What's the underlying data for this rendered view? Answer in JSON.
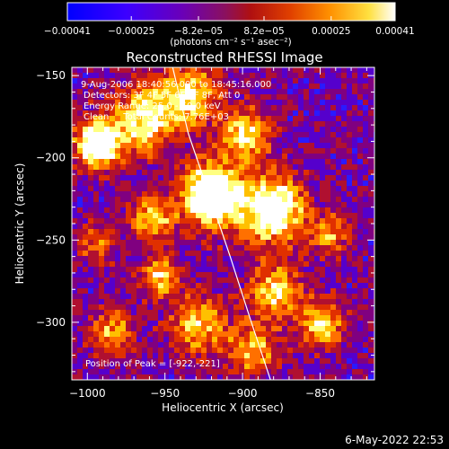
{
  "colorbar": {
    "tick_labels": [
      "-0.00041",
      "-0.00025",
      "-8.2e-05",
      "8.2e-05",
      "0.00025",
      "0.00041"
    ],
    "tick_values": [
      -0.00041,
      -0.00025,
      -8.2e-05,
      8.2e-05,
      0.00025,
      0.00041
    ],
    "range": [
      -0.00041,
      0.00041
    ],
    "units_line": "(photons cm⁻² s⁻¹ asec⁻²)"
  },
  "plot": {
    "title": "Reconstructed RHESSI Image",
    "xlabel": "Heliocentric X (arcsec)",
    "ylabel": "Heliocentric Y (arcsec)",
    "xlim": [
      -1010,
      -815
    ],
    "ylim": [
      -335,
      -145
    ],
    "x_ticks": [
      -1000,
      -950,
      -900,
      -850
    ],
    "y_ticks": [
      -150,
      -200,
      -250,
      -300
    ],
    "x_tick_labels": [
      "−1000",
      "−950",
      "−900",
      "−850"
    ],
    "y_tick_labels": [
      "−150",
      "−200",
      "−250",
      "−300"
    ],
    "info_lines": [
      "9-Aug-2006 18:40:56.000 to 18:45:16.000",
      "Detectors: 3F 4F 5F 6F 7F 8F, Att 0",
      "Energy Range: 25.0 - 50.0 keV",
      "Clean     Total Counts: 7.76E+03"
    ],
    "peak_label": "Position of Peak = [-922,-221]",
    "peak": {
      "x": -922,
      "y": -221
    },
    "limb_curve": [
      [
        -945,
        -145
      ],
      [
        -935,
        -185
      ],
      [
        -922,
        -221
      ],
      [
        -908,
        -260
      ],
      [
        -895,
        -298
      ],
      [
        -882,
        -335
      ]
    ]
  },
  "footer": {
    "date": "6-May-2022 22:53"
  },
  "colors": {
    "background": "#000000",
    "palette": [
      "#0000cc",
      "#2a1aff",
      "#5500cc",
      "#800080",
      "#b01030",
      "#e03000",
      "#ff7000",
      "#ffc000",
      "#ffff80",
      "#ffffff"
    ]
  }
}
